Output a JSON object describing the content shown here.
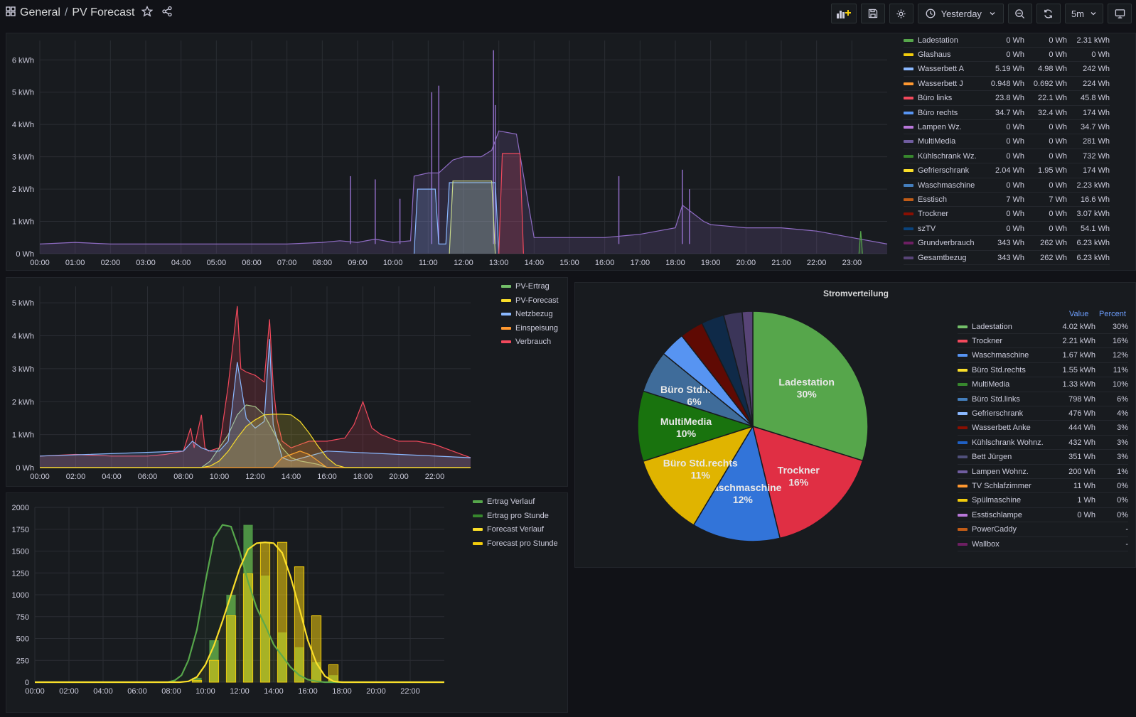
{
  "header": {
    "folder": "General",
    "dashboard": "PV Forecast",
    "time_range": "Yesterday",
    "refresh": "5m"
  },
  "icons": {
    "apps": "apps-icon",
    "star": "star-icon",
    "share": "share-icon",
    "add_panel": "add-panel-icon",
    "save": "save-icon",
    "settings": "gear-icon",
    "clock": "clock-icon",
    "zoom_out": "zoom-out-icon",
    "refresh": "refresh-icon",
    "tv": "tv-icon"
  },
  "panel1": {
    "legend": [
      {
        "name": "Ladestation",
        "v1": "0 Wh",
        "v2": "0 Wh",
        "v3": "2.31 kWh",
        "color": "#56a64b"
      },
      {
        "name": "Glashaus",
        "v1": "0 Wh",
        "v2": "0 Wh",
        "v3": "0 Wh",
        "color": "#f2cc0c"
      },
      {
        "name": "Wasserbett A",
        "v1": "5.19 Wh",
        "v2": "4.98 Wh",
        "v3": "242 Wh",
        "color": "#8ab8ff"
      },
      {
        "name": "Wasserbett J",
        "v1": "0.948 Wh",
        "v2": "0.692 Wh",
        "v3": "224 Wh",
        "color": "#ff9830"
      },
      {
        "name": "Büro links",
        "v1": "23.8 Wh",
        "v2": "22.1 Wh",
        "v3": "45.8 Wh",
        "color": "#f2495c"
      },
      {
        "name": "Büro rechts",
        "v1": "34.7 Wh",
        "v2": "32.4 Wh",
        "v3": "174 Wh",
        "color": "#5794f2"
      },
      {
        "name": "Lampen Wz.",
        "v1": "0 Wh",
        "v2": "0 Wh",
        "v3": "34.7 Wh",
        "color": "#b877d9"
      },
      {
        "name": "MultiMedia",
        "v1": "0 Wh",
        "v2": "0 Wh",
        "v3": "281 Wh",
        "color": "#705da0"
      },
      {
        "name": "Kühlschrank Wz.",
        "v1": "0 Wh",
        "v2": "0 Wh",
        "v3": "732 Wh",
        "color": "#37872d"
      },
      {
        "name": "Gefrierschrank",
        "v1": "2.04 Wh",
        "v2": "1.95 Wh",
        "v3": "174 Wh",
        "color": "#fade2a"
      },
      {
        "name": "Waschmaschine",
        "v1": "0 Wh",
        "v2": "0 Wh",
        "v3": "2.23 kWh",
        "color": "#447ebc"
      },
      {
        "name": "Esstisch",
        "v1": "7 Wh",
        "v2": "7 Wh",
        "v3": "16.6 Wh",
        "color": "#c15c17"
      },
      {
        "name": "Trockner",
        "v1": "0 Wh",
        "v2": "0 Wh",
        "v3": "3.07 kWh",
        "color": "#890f02"
      },
      {
        "name": "szTV",
        "v1": "0 Wh",
        "v2": "0 Wh",
        "v3": "54.1 Wh",
        "color": "#0a437c"
      },
      {
        "name": "Grundverbrauch",
        "v1": "343 Wh",
        "v2": "262 Wh",
        "v3": "6.23 kWh",
        "color": "#6d1f62"
      },
      {
        "name": "Gesamtbezug",
        "v1": "343 Wh",
        "v2": "262 Wh",
        "v3": "6.23 kWh",
        "color": "#584477"
      }
    ]
  },
  "chart_data": [
    {
      "id": "consumption",
      "type": "line",
      "x_ticks": [
        "00:00",
        "01:00",
        "02:00",
        "03:00",
        "04:00",
        "05:00",
        "06:00",
        "07:00",
        "08:00",
        "09:00",
        "10:00",
        "11:00",
        "12:00",
        "13:00",
        "14:00",
        "15:00",
        "16:00",
        "17:00",
        "18:00",
        "19:00",
        "20:00",
        "21:00",
        "22:00",
        "23:00"
      ],
      "y_ticks": [
        "0 Wh",
        "1 kWh",
        "2 kWh",
        "3 kWh",
        "4 kWh",
        "5 kWh",
        "6 kWh"
      ],
      "ylim": [
        0,
        6.6
      ],
      "xlim": [
        0,
        24
      ],
      "series": [
        {
          "name": "Gesamtbezug",
          "color": "#8f6cc4",
          "x": [
            0,
            1,
            2,
            3,
            4,
            5,
            6,
            7,
            8,
            8.5,
            9,
            9.5,
            10,
            10.5,
            10.6,
            11,
            11.3,
            11.7,
            12,
            12.5,
            12.8,
            13,
            13.5,
            14,
            15,
            16,
            17,
            18,
            18.2,
            18.8,
            19,
            20,
            21,
            22,
            23,
            24
          ],
          "y": [
            0.3,
            0.35,
            0.3,
            0.3,
            0.3,
            0.3,
            0.3,
            0.3,
            0.35,
            0.4,
            0.35,
            0.45,
            0.35,
            0.4,
            2.4,
            2.5,
            2.5,
            2.9,
            3.0,
            3.0,
            3.2,
            3.8,
            3.7,
            0.5,
            0.5,
            0.5,
            0.6,
            0.8,
            1.5,
            1.0,
            0.9,
            0.8,
            0.8,
            0.7,
            0.5,
            0.3
          ],
          "spikes": [
            [
              8.8,
              2.4
            ],
            [
              9.5,
              2.3
            ],
            [
              10.2,
              1.7
            ],
            [
              11.1,
              5.0
            ],
            [
              11.3,
              5.2
            ],
            [
              12.85,
              6.3
            ],
            [
              12.9,
              4.6
            ],
            [
              16.4,
              2.4
            ],
            [
              18.2,
              2.6
            ],
            [
              18.4,
              2.0
            ]
          ]
        },
        {
          "name": "Waschmaschine",
          "color": "#8ab8ff",
          "x": [
            10.6,
            10.7,
            11.2,
            11.3,
            11.5,
            11.6,
            12.9,
            13.0
          ],
          "y": [
            0,
            2.0,
            2.0,
            0.3,
            0.3,
            2.2,
            2.2,
            0
          ]
        },
        {
          "name": "Ladestation",
          "color": "#c8d88a",
          "x": [
            11.6,
            11.7,
            12.8,
            12.9
          ],
          "y": [
            0,
            2.25,
            2.25,
            0
          ]
        },
        {
          "name": "Trockner",
          "color": "#f2495c",
          "x": [
            13.0,
            13.1,
            13.6,
            13.7
          ],
          "y": [
            0,
            3.1,
            3.1,
            0
          ]
        },
        {
          "name": "Kühlschrank Wz.",
          "color": "#56a64b",
          "x": [
            23.2,
            23.25,
            23.3
          ],
          "y": [
            0,
            0.7,
            0
          ]
        }
      ]
    },
    {
      "id": "pv",
      "type": "line",
      "x_ticks": [
        "00:00",
        "02:00",
        "04:00",
        "06:00",
        "08:00",
        "10:00",
        "12:00",
        "14:00",
        "16:00",
        "18:00",
        "20:00",
        "22:00"
      ],
      "y_ticks": [
        "0 Wh",
        "1 kWh",
        "2 kWh",
        "3 kWh",
        "4 kWh",
        "5 kWh"
      ],
      "ylim": [
        0,
        5.5
      ],
      "xlim": [
        0,
        24
      ],
      "legend": [
        {
          "name": "PV-Ertrag",
          "color": "#73bf69"
        },
        {
          "name": "PV-Forecast",
          "color": "#fade2a"
        },
        {
          "name": "Netzbezug",
          "color": "#8ab8ff"
        },
        {
          "name": "Einspeisung",
          "color": "#ff9830"
        },
        {
          "name": "Verbrauch",
          "color": "#f2495c"
        }
      ],
      "series": [
        {
          "name": "Verbrauch",
          "color": "#f2495c",
          "x": [
            0,
            2,
            4,
            6,
            7,
            8,
            8.4,
            8.6,
            9,
            9.2,
            9.4,
            10,
            10.5,
            11,
            11.2,
            11.5,
            12,
            12.5,
            12.8,
            13,
            13.2,
            13.5,
            14,
            14.5,
            15,
            16,
            17,
            17.5,
            18,
            18.5,
            19,
            20,
            21,
            22,
            23,
            24
          ],
          "y": [
            0.35,
            0.4,
            0.35,
            0.35,
            0.4,
            0.5,
            1.2,
            0.6,
            1.6,
            0.6,
            0.5,
            0.6,
            2.5,
            4.9,
            3.0,
            2.9,
            2.8,
            2.6,
            4.5,
            2.5,
            1.5,
            0.8,
            0.6,
            0.7,
            0.8,
            0.8,
            0.9,
            1.3,
            2.0,
            1.2,
            1.0,
            0.8,
            0.8,
            0.7,
            0.5,
            0.3
          ]
        },
        {
          "name": "PV-Ertrag",
          "color": "#a8c48a",
          "x": [
            0,
            9,
            9.5,
            10,
            10.5,
            11,
            11.5,
            12,
            12.5,
            13,
            13.5,
            14,
            14.5,
            15,
            15.5,
            16,
            24
          ],
          "y": [
            0,
            0,
            0.2,
            0.6,
            1.0,
            1.6,
            1.9,
            1.85,
            1.6,
            1.1,
            0.6,
            0.3,
            0.2,
            0.15,
            0.1,
            0,
            0
          ]
        },
        {
          "name": "Netzbezug",
          "color": "#8ab8ff",
          "x": [
            0,
            8,
            8.5,
            9,
            9.5,
            10,
            10.5,
            11,
            11.5,
            12,
            12.5,
            12.8,
            13,
            13.5,
            14,
            16,
            24
          ],
          "y": [
            0.35,
            0.5,
            0.8,
            0.6,
            0.5,
            0.5,
            0.8,
            3.2,
            1.5,
            1.2,
            1.4,
            3.9,
            1.3,
            0.3,
            0.2,
            0.5,
            0.3
          ]
        },
        {
          "name": "Einspeisung",
          "color": "#ff9830",
          "x": [
            0,
            13,
            13.5,
            14,
            14.5,
            15,
            15.5,
            16,
            24
          ],
          "y": [
            0,
            0,
            0.3,
            0.4,
            0.5,
            0.4,
            0.2,
            0,
            0
          ]
        },
        {
          "name": "PV-Forecast",
          "color": "#fade2a",
          "x": [
            0,
            9,
            9.5,
            10,
            10.5,
            11,
            11.5,
            12,
            12.5,
            13,
            13.5,
            14,
            14.5,
            15,
            15.5,
            16,
            16.5,
            17,
            24
          ],
          "y": [
            0,
            0,
            0.05,
            0.2,
            0.5,
            0.9,
            1.25,
            1.45,
            1.6,
            1.62,
            1.62,
            1.6,
            1.4,
            1.05,
            0.65,
            0.3,
            0.08,
            0,
            0
          ]
        }
      ]
    },
    {
      "id": "forecast_hourly",
      "type": "bar",
      "x_ticks": [
        "00:00",
        "02:00",
        "04:00",
        "06:00",
        "08:00",
        "10:00",
        "12:00",
        "14:00",
        "16:00",
        "18:00",
        "20:00",
        "22:00"
      ],
      "y_ticks": [
        "0",
        "250",
        "500",
        "750",
        "1000",
        "1250",
        "1500",
        "1750",
        "2000"
      ],
      "ylim": [
        0,
        2000
      ],
      "xlim": [
        0,
        24
      ],
      "legend": [
        {
          "name": "Ertrag Verlauf",
          "color": "#56a64b"
        },
        {
          "name": "Ertrag pro Stunde",
          "color": "#37872d"
        },
        {
          "name": "Forecast Verlauf",
          "color": "#fade2a"
        },
        {
          "name": "Forecast pro Stunde",
          "color": "#f2cc0c"
        }
      ],
      "bars": {
        "hours": [
          9,
          10,
          11,
          12,
          13,
          14,
          15,
          16,
          17
        ],
        "ertrag": [
          50,
          480,
          1000,
          1800,
          1220,
          570,
          400,
          230,
          80
        ],
        "forecast": [
          20,
          250,
          760,
          1240,
          1600,
          1600,
          1320,
          760,
          200
        ]
      },
      "series": [
        {
          "name": "Ertrag Verlauf",
          "color": "#56a64b",
          "x": [
            0,
            7.8,
            8.2,
            8.6,
            9,
            9.5,
            10,
            10.5,
            11,
            11.5,
            12,
            12.5,
            13,
            13.5,
            14,
            14.5,
            15,
            15.5,
            16,
            16.5,
            17,
            17.5,
            24
          ],
          "y": [
            0,
            0,
            20,
            80,
            250,
            600,
            1150,
            1650,
            1800,
            1780,
            1500,
            1150,
            850,
            650,
            430,
            300,
            170,
            80,
            30,
            10,
            0,
            0,
            0
          ]
        },
        {
          "name": "Forecast Verlauf",
          "color": "#fade2a",
          "x": [
            0,
            8.5,
            9,
            9.5,
            10,
            10.5,
            11,
            11.5,
            12,
            12.5,
            13,
            13.5,
            14,
            14.5,
            15,
            15.5,
            16,
            16.5,
            17,
            17.5,
            18,
            24
          ],
          "y": [
            0,
            0,
            10,
            60,
            200,
            420,
            700,
            1000,
            1300,
            1520,
            1590,
            1600,
            1590,
            1480,
            1200,
            850,
            480,
            220,
            70,
            10,
            0,
            0
          ]
        }
      ]
    },
    {
      "id": "stromverteilung",
      "type": "pie",
      "title": "Stromverteilung",
      "header": {
        "value": "Value",
        "percent": "Percent"
      },
      "slices": [
        {
          "name": "Ladestation",
          "value": 4.02,
          "label": "Ladestation",
          "pct": "30%",
          "color": "#56a64b"
        },
        {
          "name": "Trockner",
          "value": 2.21,
          "label": "Trockner",
          "pct": "16%",
          "color": "#e02f44"
        },
        {
          "name": "Waschmaschine",
          "value": 1.67,
          "label": "Waschmaschine",
          "pct": "12%",
          "color": "#3274d9"
        },
        {
          "name": "Büro Std.rechts",
          "value": 1.55,
          "label": "Büro Std.rechts",
          "pct": "11%",
          "color": "#e0b400"
        },
        {
          "name": "MultiMedia",
          "value": 1.33,
          "label": "MultiMedia",
          "pct": "10%",
          "color": "#19730e"
        },
        {
          "name": "Büro Std.links",
          "value": 0.798,
          "label": "Büro Std.links",
          "pct": "6%",
          "color": "#3f6c9a"
        },
        {
          "name": "Gefrierschrank",
          "value": 0.476,
          "label": "",
          "pct": "",
          "color": "#5794f2"
        },
        {
          "name": "Wasserbett Anke",
          "value": 0.444,
          "label": "",
          "pct": "",
          "color": "#5f0a03"
        },
        {
          "name": "Kühlschrank Wohnz.",
          "value": 0.432,
          "label": "",
          "pct": "",
          "color": "#0f2a48"
        },
        {
          "name": "Bett Jürgen",
          "value": 0.351,
          "label": "",
          "pct": "",
          "color": "#3b3559"
        },
        {
          "name": "Lampen Wohnz.",
          "value": 0.2,
          "label": "",
          "pct": "",
          "color": "#584477"
        }
      ],
      "table": [
        {
          "name": "Ladestation",
          "value": "4.02 kWh",
          "pct": "30%",
          "color": "#73bf69"
        },
        {
          "name": "Trockner",
          "value": "2.21 kWh",
          "pct": "16%",
          "color": "#f2495c"
        },
        {
          "name": "Waschmaschine",
          "value": "1.67 kWh",
          "pct": "12%",
          "color": "#5794f2"
        },
        {
          "name": "Büro Std.rechts",
          "value": "1.55 kWh",
          "pct": "11%",
          "color": "#fade2a"
        },
        {
          "name": "MultiMedia",
          "value": "1.33 kWh",
          "pct": "10%",
          "color": "#37872d"
        },
        {
          "name": "Büro Std.links",
          "value": "798 Wh",
          "pct": "6%",
          "color": "#447ebc"
        },
        {
          "name": "Gefrierschrank",
          "value": "476 Wh",
          "pct": "4%",
          "color": "#8ab8ff"
        },
        {
          "name": "Wasserbett Anke",
          "value": "444 Wh",
          "pct": "3%",
          "color": "#890f02"
        },
        {
          "name": "Kühlschrank Wohnz.",
          "value": "432 Wh",
          "pct": "3%",
          "color": "#1f60c4"
        },
        {
          "name": "Bett Jürgen",
          "value": "351 Wh",
          "pct": "3%",
          "color": "#4f4f7a"
        },
        {
          "name": "Lampen Wohnz.",
          "value": "200 Wh",
          "pct": "1%",
          "color": "#705da0"
        },
        {
          "name": "TV Schlafzimmer",
          "value": "11 Wh",
          "pct": "0%",
          "color": "#ff9830"
        },
        {
          "name": "Spülmaschine",
          "value": "1 Wh",
          "pct": "0%",
          "color": "#f2cc0c"
        },
        {
          "name": "Esstischlampe",
          "value": "0 Wh",
          "pct": "0%",
          "color": "#b877d9"
        },
        {
          "name": "PowerCaddy",
          "value": "",
          "pct": "-",
          "color": "#c15c17"
        },
        {
          "name": "Wallbox",
          "value": "",
          "pct": "-",
          "color": "#6d1f62"
        }
      ]
    }
  ]
}
